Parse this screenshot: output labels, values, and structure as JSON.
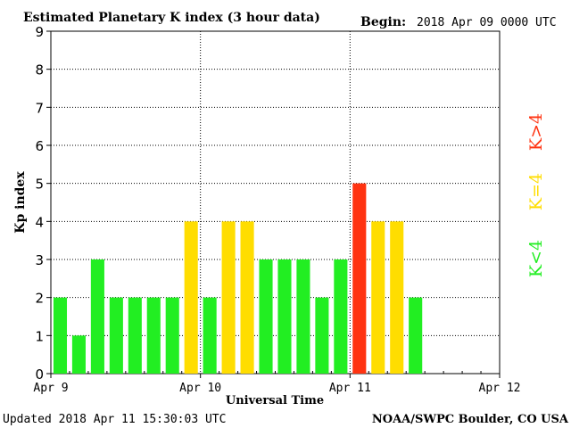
{
  "header": {
    "title": "Estimated Planetary K index (3 hour data)",
    "begin_label": "Begin:",
    "begin_value": "2018 Apr 09 0000 UTC"
  },
  "footer": {
    "updated": "Updated 2018 Apr 11 15:30:03 UTC",
    "source": "NOAA/SWPC Boulder, CO USA"
  },
  "legend": {
    "high": "K>4",
    "equal": "K=4",
    "low": "K<4"
  },
  "colors": {
    "low": "#22ee22",
    "equal": "#ffdd00",
    "high": "#ff3311",
    "grid": "#000000",
    "background": "#ffffff"
  },
  "chart_data": {
    "type": "bar",
    "title": "Estimated Planetary K index (3 hour data)",
    "xlabel": "Universal Time",
    "ylabel": "Kp index",
    "ylim": [
      0,
      9
    ],
    "yticks": [
      "0",
      "1",
      "2",
      "3",
      "4",
      "5",
      "6",
      "7",
      "8",
      "9"
    ],
    "xticks": [
      "Apr 9",
      "Apr 10",
      "Apr 11",
      "Apr 12"
    ],
    "interval_hours": 3,
    "grid": true,
    "values": [
      2,
      1,
      3,
      2,
      2,
      2,
      2,
      4,
      2,
      4,
      4,
      3,
      3,
      3,
      2,
      3,
      5,
      4,
      4,
      2
    ]
  }
}
